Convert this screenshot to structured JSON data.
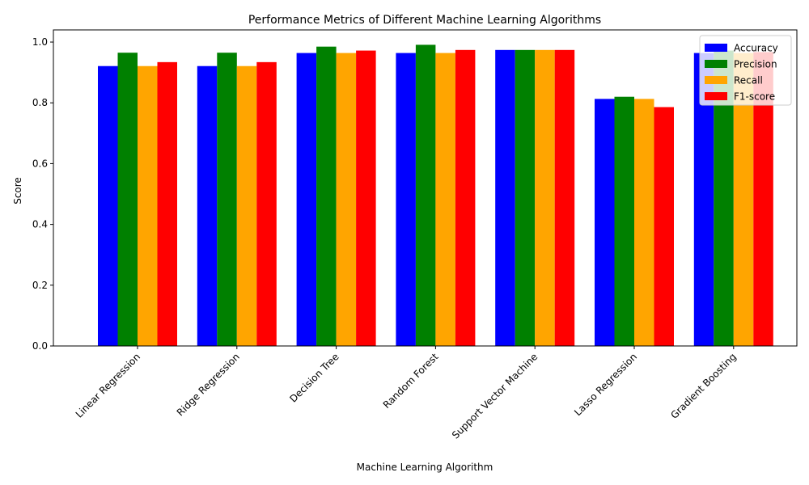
{
  "chart_data": {
    "type": "bar",
    "title": "Performance Metrics of Different Machine Learning Algorithms",
    "xlabel": "Machine Learning Algorithm",
    "ylabel": "Score",
    "ylim": [
      0,
      1.04
    ],
    "yticks": [
      "0.0",
      "0.2",
      "0.4",
      "0.6",
      "0.8",
      "1.0"
    ],
    "grid": false,
    "legend_position": "top-right",
    "categories": [
      "Linear Regression",
      "Ridge Regression",
      "Decision Tree",
      "Random Forest",
      "Support Vector Machine",
      "Lasso Regression",
      "Gradient Boosting"
    ],
    "series": [
      {
        "name": "Accuracy",
        "color": "#0000ff",
        "values": [
          0.921,
          0.921,
          0.964,
          0.964,
          0.974,
          0.813,
          0.964
        ]
      },
      {
        "name": "Precision",
        "color": "#008000",
        "values": [
          0.965,
          0.965,
          0.985,
          0.991,
          0.974,
          0.82,
          0.972
        ]
      },
      {
        "name": "Recall",
        "color": "#ffa500",
        "values": [
          0.921,
          0.921,
          0.964,
          0.964,
          0.974,
          0.813,
          0.964
        ]
      },
      {
        "name": "F1-score",
        "color": "#ff0000",
        "values": [
          0.934,
          0.934,
          0.972,
          0.974,
          0.974,
          0.786,
          0.967
        ]
      }
    ]
  }
}
